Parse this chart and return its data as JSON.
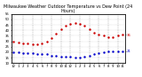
{
  "title": "Milwaukee Weather Outdoor Temperature vs Dew Point (24 Hours)",
  "background_color": "#ffffff",
  "grid_color": "#aaaaaa",
  "hours": [
    0,
    1,
    2,
    3,
    4,
    5,
    6,
    7,
    8,
    9,
    10,
    11,
    12,
    13,
    14,
    15,
    16,
    17,
    18,
    19,
    20,
    21,
    22,
    23
  ],
  "temp": [
    30,
    29,
    28,
    28,
    27,
    27,
    28,
    30,
    33,
    37,
    41,
    44,
    46,
    47,
    46,
    44,
    41,
    38,
    36,
    35,
    34,
    34,
    35,
    36
  ],
  "dew": [
    20,
    20,
    19,
    19,
    19,
    18,
    18,
    18,
    17,
    17,
    16,
    16,
    16,
    15,
    15,
    16,
    17,
    18,
    19,
    20,
    21,
    21,
    21,
    21
  ],
  "temp_color": "#cc0000",
  "dew_color": "#0000cc",
  "marker_size": 1.5,
  "ylim_min": 10,
  "ylim_max": 55,
  "title_fontsize": 3.5,
  "tick_fontsize": 2.8,
  "vgrid_positions": [
    0,
    2,
    4,
    6,
    8,
    10,
    12,
    14,
    16,
    18,
    20,
    22
  ],
  "xtick_labels": [
    "12",
    "1",
    "2",
    "3",
    "4",
    "5",
    "6",
    "7",
    "8",
    "9",
    "10",
    "11",
    "12",
    "1",
    "2",
    "3",
    "4",
    "5",
    "6",
    "7",
    "8",
    "9",
    "10",
    "11"
  ]
}
